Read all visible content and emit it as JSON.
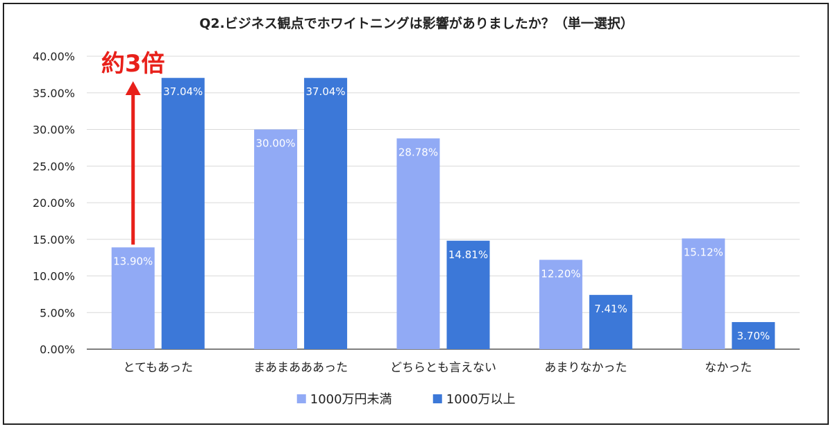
{
  "chart_data": {
    "type": "bar",
    "title": "Q2.ビジネス観点でホワイトニングは影響がありましたか？（単一選択）",
    "categories": [
      "とてもあった",
      "まあまあああった",
      "どちらとも言えない",
      "あまりなかった",
      "なかった"
    ],
    "series": [
      {
        "name": "1000万円未満",
        "color": "#91aaf5",
        "values": [
          13.9,
          30.0,
          28.78,
          12.2,
          15.12
        ],
        "labels": [
          "13.90%",
          "30.00%",
          "28.78%",
          "12.20%",
          "15.12%"
        ]
      },
      {
        "name": "1000万以上",
        "color": "#3c78d8",
        "values": [
          37.04,
          37.04,
          14.81,
          7.41,
          3.7
        ],
        "labels": [
          "37.04%",
          "37.04%",
          "14.81%",
          "7.41%",
          "3.70%"
        ]
      }
    ],
    "ylim": [
      0,
      40
    ],
    "yticks": [
      "0.00%",
      "5.00%",
      "10.00%",
      "15.00%",
      "20.00%",
      "25.00%",
      "30.00%",
      "35.00%",
      "40.00%"
    ],
    "grid": true,
    "legend_position": "bottom",
    "annotation": {
      "text": "約3倍",
      "color": "#e8201a",
      "from_series": 0,
      "category_index": 0
    }
  }
}
